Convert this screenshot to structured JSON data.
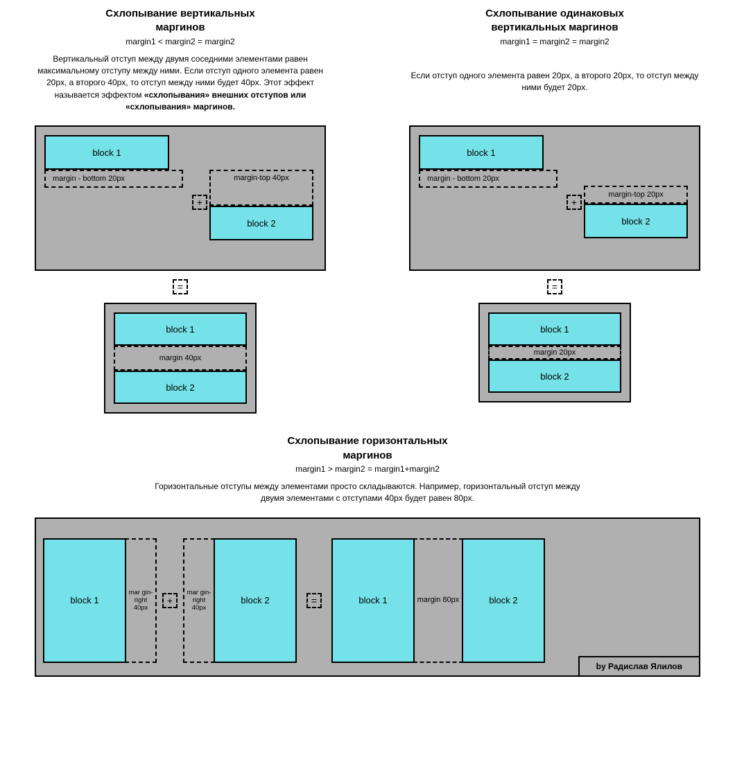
{
  "colors": {
    "block_fill": "#74e2e8",
    "panel_fill": "#b0b0b0",
    "border": "#000000",
    "page_bg": "#ffffff",
    "text": "#000000"
  },
  "typography": {
    "title_size_pt": 15,
    "formula_size_pt": 12,
    "body_size_pt": 12,
    "label_size_pt": 11,
    "font_family": "Arial"
  },
  "left": {
    "title_l1": "Схлопывание вертикальных",
    "title_l2": "маргинов",
    "formula": "margin1 < margin2 = margin2",
    "desc_plain1": "Вертикальный отступ между двумя соседними элементами равен максимальному отступу между ними. Если отступ одного элемента равен 20px, а второго 40px, то отступ между ними будет 40px. Этот эффект называется эффектом ",
    "desc_bold": "«схлопывания» внешних отступов или «схлопывания» маргинов.",
    "b1": "block 1",
    "d1": "margin - bottom 20px",
    "d2": "margin-top 40px",
    "b2": "block 2",
    "plus": "+",
    "eq": "=",
    "res_b1": "block 1",
    "res_margin": "margin 40px",
    "res_margin_h": 36,
    "res_b2": "block 2"
  },
  "right": {
    "title_l1": "Схлопывание одинаковых",
    "title_l2": "вертикальных маргинов",
    "formula": "margin1 = margin2 = margin2",
    "desc": "Если отступ одного элемента равен 20px, а второго 20px, то отступ между ними будет 20px.",
    "b1": "block 1",
    "d1": "margin - bottom 20px",
    "d2": "margin-top 20px",
    "b2": "block 2",
    "plus": "+",
    "eq": "=",
    "res_b1": "block 1",
    "res_margin": "margin 20px",
    "res_margin_h": 20,
    "res_b2": "block 2"
  },
  "bottom": {
    "title_l1": "Схлопывание горизонтальных",
    "title_l2": "маргинов",
    "formula": "margin1 > margin2 = margin1+margin2",
    "desc": "Горизонтальные отступы между элементами просто складываются. Например, горизонтальный отступ между двумя элементами с отступами 40px будет равен 80px.",
    "b1": "block 1",
    "d1": "mar gin- right 40px",
    "plus": "+",
    "d2": "mar gin- right 40px",
    "b2": "block 2",
    "eq": "=",
    "rb1": "block 1",
    "rd": "margin 80px",
    "rb2": "block 2",
    "attribution": "by Радислав Ялилов"
  }
}
